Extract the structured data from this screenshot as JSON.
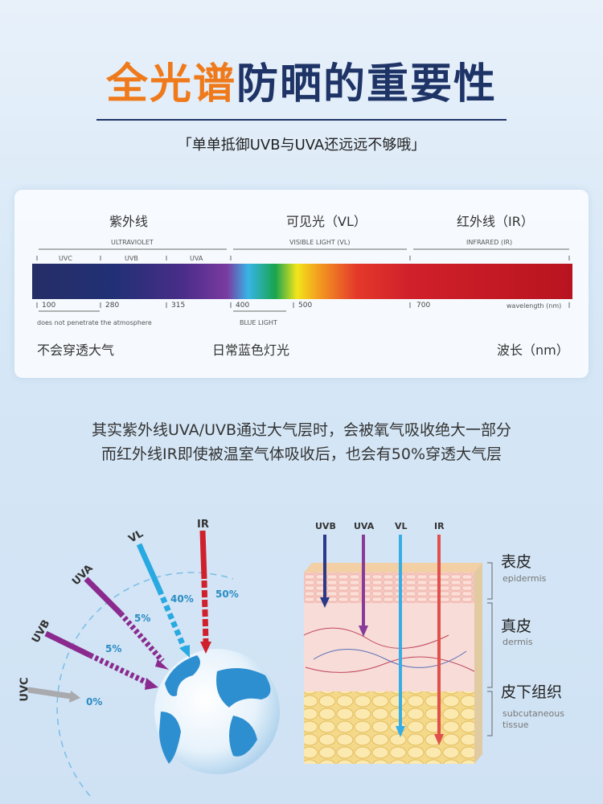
{
  "header": {
    "title_highlight": "全光谱",
    "title_rest": "防晒的重要性",
    "subtitle": "「单单抵御UVB与UVA还远远不够哦」"
  },
  "spectrum": {
    "cn_labels": {
      "uv": "紫外线",
      "vl": "可见光（VL）",
      "ir": "红外线（IR）"
    },
    "en_labels": {
      "uv": "ULTRAVIOLET",
      "vl": "VISIBLE LIGHT (VL)",
      "ir": "INFRARED (IR)"
    },
    "bands": [
      "UVC",
      "UVB",
      "UVA"
    ],
    "ticks": [
      "100",
      "280",
      "315",
      "400",
      "500",
      "700"
    ],
    "axis_unit": "wavelength (nm)",
    "note_atmosphere": "does not penetrate the atmosphere",
    "blue_light": "BLUE LIGHT",
    "bottom": {
      "left": "不会穿透大气",
      "middle": "日常蓝色灯光",
      "right": "波长（nm）"
    }
  },
  "body_text": [
    "其实紫外线UVA/UVB通过大气层时，会被氧气吸收绝大一部分",
    "而红外线IR即使被温室气体吸收后，也会有50%穿透大气层"
  ],
  "globe": {
    "rays": [
      {
        "label": "UVC",
        "percent": "0%",
        "color": "#a9aaae"
      },
      {
        "label": "UVB",
        "percent": "5%",
        "color": "#8a2a8e"
      },
      {
        "label": "UVA",
        "percent": "5%",
        "color": "#8a2a8e"
      },
      {
        "label": "VL",
        "percent": "40%",
        "color": "#29a9e1"
      },
      {
        "label": "IR",
        "percent": "50%",
        "color": "#d0202b"
      }
    ]
  },
  "skin": {
    "rays": [
      "UVB",
      "UVA",
      "VL",
      "IR"
    ],
    "layers": [
      {
        "cn": "表皮",
        "en": "epidermis"
      },
      {
        "cn": "真皮",
        "en": "dermis"
      },
      {
        "cn": "皮下组织",
        "en": "subcutaneous",
        "en2": "tissue"
      }
    ]
  }
}
